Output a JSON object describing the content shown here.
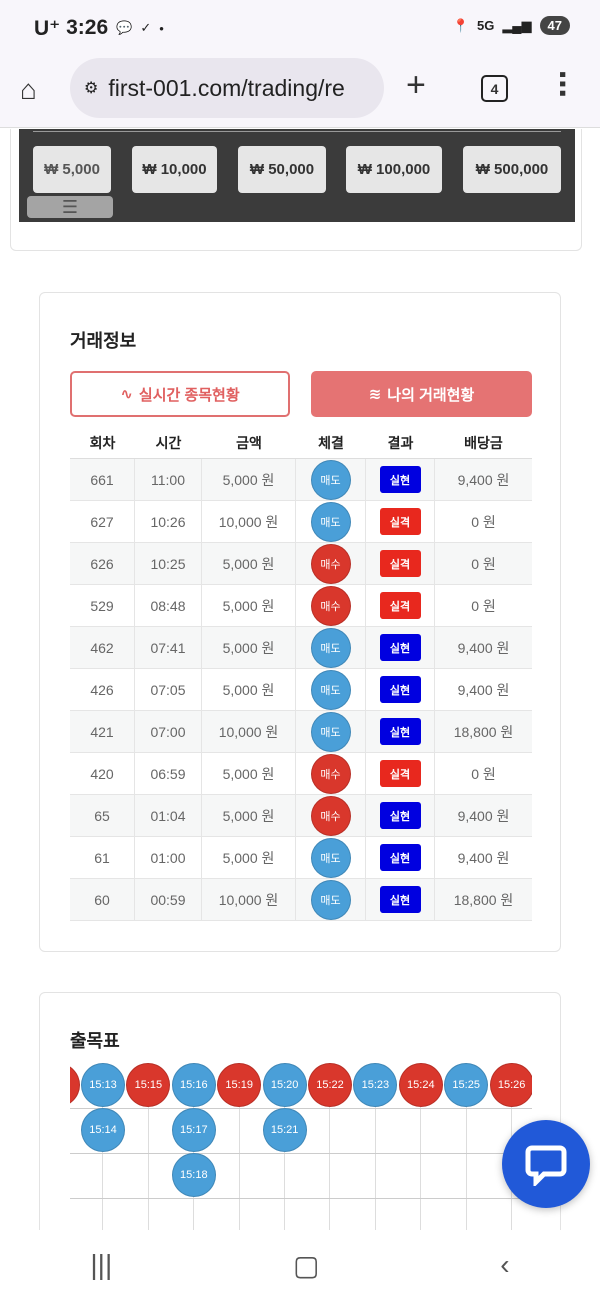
{
  "status": {
    "carrier": "U⁺",
    "time": "3:26",
    "battery": "47",
    "network": "5G"
  },
  "browser": {
    "url": "first-001.com/trading/re",
    "tab_count": "4"
  },
  "amounts": [
    "₩ 5,000",
    "₩ 10,000",
    "₩ 50,000",
    "₩ 100,000",
    "₩ 500,000"
  ],
  "trade": {
    "title": "거래정보",
    "tab_realtime": "실시간 종목현황",
    "tab_mine": "나의 거래현황",
    "columns": [
      "회차",
      "시간",
      "금액",
      "체결",
      "결과",
      "배당금"
    ],
    "rows": [
      {
        "round": "661",
        "time": "11:00",
        "amount": "5,000 원",
        "side": "매도",
        "result": "실현",
        "payout": "9,400 원"
      },
      {
        "round": "627",
        "time": "10:26",
        "amount": "10,000 원",
        "side": "매도",
        "result": "실격",
        "payout": "0 원"
      },
      {
        "round": "626",
        "time": "10:25",
        "amount": "5,000 원",
        "side": "매수",
        "result": "실격",
        "payout": "0 원"
      },
      {
        "round": "529",
        "time": "08:48",
        "amount": "5,000 원",
        "side": "매수",
        "result": "실격",
        "payout": "0 원"
      },
      {
        "round": "462",
        "time": "07:41",
        "amount": "5,000 원",
        "side": "매도",
        "result": "실현",
        "payout": "9,400 원"
      },
      {
        "round": "426",
        "time": "07:05",
        "amount": "5,000 원",
        "side": "매도",
        "result": "실현",
        "payout": "9,400 원"
      },
      {
        "round": "421",
        "time": "07:00",
        "amount": "10,000 원",
        "side": "매도",
        "result": "실현",
        "payout": "18,800 원"
      },
      {
        "round": "420",
        "time": "06:59",
        "amount": "5,000 원",
        "side": "매수",
        "result": "실격",
        "payout": "0 원"
      },
      {
        "round": "65",
        "time": "01:04",
        "amount": "5,000 원",
        "side": "매수",
        "result": "실현",
        "payout": "9,400 원"
      },
      {
        "round": "61",
        "time": "01:00",
        "amount": "5,000 원",
        "side": "매도",
        "result": "실현",
        "payout": "9,400 원"
      },
      {
        "round": "60",
        "time": "00:59",
        "amount": "10,000 원",
        "side": "매도",
        "result": "실현",
        "payout": "18,800 원"
      }
    ]
  },
  "pattern": {
    "title": "출목표",
    "columns": [
      {
        "color": "red",
        "items": [
          ""
        ]
      },
      {
        "color": "blue",
        "items": [
          "15:13",
          "15:14"
        ]
      },
      {
        "color": "red",
        "items": [
          "15:15"
        ]
      },
      {
        "color": "blue",
        "items": [
          "15:16",
          "15:17",
          "15:18"
        ]
      },
      {
        "color": "red",
        "items": [
          "15:19"
        ]
      },
      {
        "color": "blue",
        "items": [
          "15:20",
          "15:21"
        ]
      },
      {
        "color": "red",
        "items": [
          "15:22"
        ]
      },
      {
        "color": "blue",
        "items": [
          "15:23"
        ]
      },
      {
        "color": "red",
        "items": [
          "15:24"
        ]
      },
      {
        "color": "blue",
        "items": [
          "15:25"
        ]
      },
      {
        "color": "red",
        "items": [
          "15:26"
        ]
      }
    ]
  },
  "colors": {
    "sell": "#4a9fd8",
    "buy": "#d9372c",
    "win": "#0000e0",
    "lose": "#e8281e",
    "accent": "#e57373",
    "chat": "#2159d8"
  }
}
